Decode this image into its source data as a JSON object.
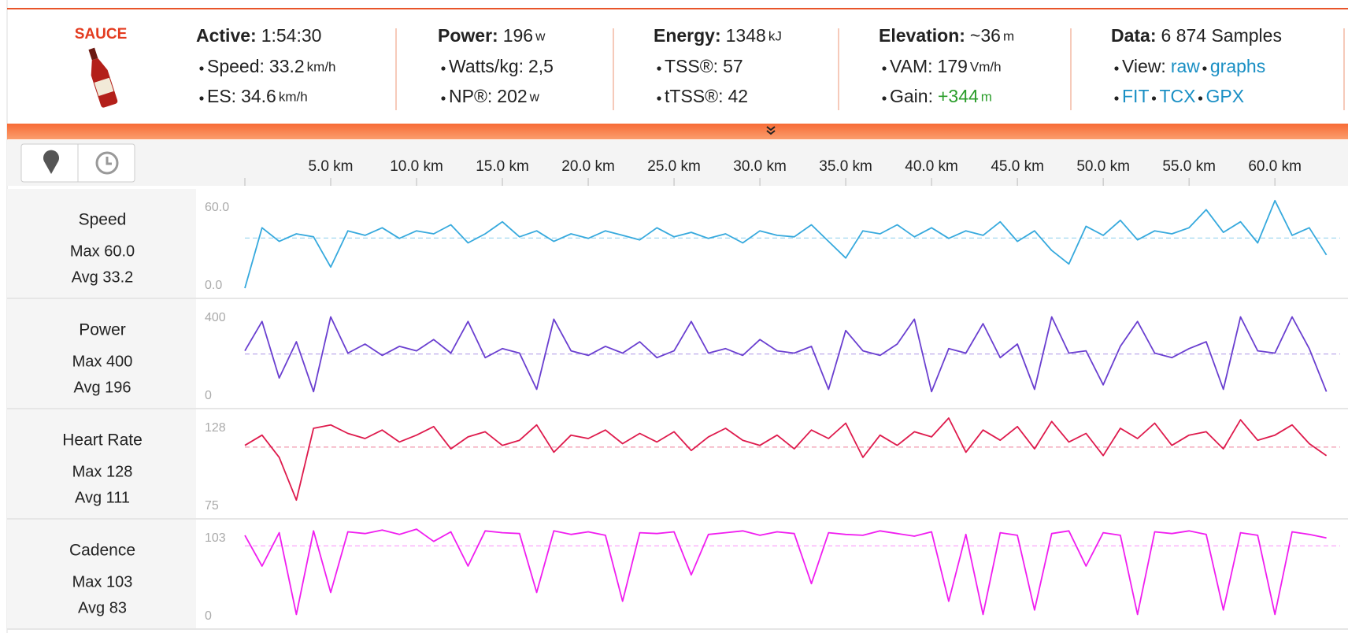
{
  "header": {
    "logo": "SAUCE",
    "stats": [
      {
        "label": "Active:",
        "value": "1:54:30",
        "items": [
          {
            "label": "Speed:",
            "value": "33.2",
            "unit": "km/h"
          },
          {
            "label": "ES:",
            "value": "34.6",
            "unit": "km/h"
          }
        ]
      },
      {
        "label": "Power:",
        "value": "196",
        "unit": "w",
        "items": [
          {
            "label": "Watts/kg:",
            "value": "2,5"
          },
          {
            "label": "NP®:",
            "value": "202",
            "unit": "w"
          }
        ]
      },
      {
        "label": "Energy:",
        "value": "1348",
        "unit": "kJ",
        "items": [
          {
            "label": "TSS®:",
            "value": "57"
          },
          {
            "label": "tTSS®:",
            "value": "42"
          }
        ]
      },
      {
        "label": "Elevation:",
        "value": "~36",
        "unit": "m",
        "items": [
          {
            "label": "VAM:",
            "value": "179",
            "unit": "Vm/h"
          },
          {
            "label": "Gain:",
            "value": "+344",
            "unit": "m",
            "color": "#2a9d2a"
          }
        ]
      },
      {
        "label": "Data:",
        "value": "6 874 Samples",
        "items": [
          {
            "label": "View:",
            "links": [
              "raw",
              "graphs"
            ]
          },
          {
            "links": [
              "FIT",
              "TCX",
              "GPX"
            ]
          }
        ]
      }
    ]
  },
  "charts": {
    "xlim": [
      0,
      63.8
    ],
    "xticks": [
      {
        "value": 5,
        "label": "5.0 km"
      },
      {
        "value": 10,
        "label": "10.0 km"
      },
      {
        "value": 15,
        "label": "15.0 km"
      },
      {
        "value": 20,
        "label": "20.0 km"
      },
      {
        "value": 25,
        "label": "25.0 km"
      },
      {
        "value": 30,
        "label": "30.0 km"
      },
      {
        "value": 35,
        "label": "35.0 km"
      },
      {
        "value": 40,
        "label": "40.0 km"
      },
      {
        "value": 45,
        "label": "45.0 km"
      },
      {
        "value": 50,
        "label": "50.0 km"
      },
      {
        "value": 55,
        "label": "55.0 km"
      },
      {
        "value": 60,
        "label": "60.0 km"
      }
    ],
    "x": [
      0,
      1,
      2,
      3,
      4,
      5,
      6,
      7,
      8,
      9,
      10,
      11,
      12,
      13,
      14,
      15,
      16,
      17,
      18,
      19,
      20,
      21,
      22,
      23,
      24,
      25,
      26,
      27,
      28,
      29,
      30,
      31,
      32,
      33,
      34,
      35,
      36,
      37,
      38,
      39,
      40,
      41,
      42,
      43,
      44,
      45,
      46,
      47,
      48,
      49,
      50,
      51,
      52,
      53,
      54,
      55,
      56,
      57,
      58,
      59,
      60,
      61,
      62,
      63
    ],
    "panels": [
      {
        "name": "Speed",
        "max_text": "Max 60.0",
        "avg_text": "Avg 33.2",
        "color": "#36a9dd",
        "avg": 33.2,
        "ylim": [
          0,
          60
        ],
        "yticks": [
          {
            "value": 0,
            "label": "0.0"
          },
          {
            "value": 60,
            "label": "60.0"
          }
        ],
        "values": [
          0,
          40,
          31,
          36,
          34,
          14,
          38,
          35,
          40,
          33,
          38,
          36,
          42,
          30,
          36,
          44,
          34,
          38,
          31,
          36,
          33,
          38,
          35,
          32,
          40,
          34,
          37,
          33,
          36,
          30,
          38,
          35,
          34,
          42,
          31,
          20,
          38,
          36,
          42,
          34,
          40,
          33,
          38,
          35,
          44,
          31,
          38,
          25,
          16,
          41,
          35,
          45,
          32,
          38,
          36,
          40,
          52,
          37,
          44,
          30,
          58,
          35,
          40,
          22
        ]
      },
      {
        "name": "Power",
        "max_text": "Max 400",
        "avg_text": "Avg 196",
        "color": "#6a3fd0",
        "avg": 196,
        "ylim": [
          0,
          400
        ],
        "yticks": [
          0,
          400
        ],
        "values": [
          210,
          340,
          90,
          250,
          30,
          360,
          200,
          240,
          190,
          230,
          210,
          260,
          200,
          340,
          180,
          220,
          200,
          40,
          350,
          210,
          190,
          230,
          200,
          250,
          180,
          210,
          340,
          200,
          220,
          190,
          260,
          210,
          200,
          230,
          40,
          300,
          210,
          190,
          240,
          350,
          30,
          220,
          200,
          330,
          180,
          240,
          40,
          360,
          200,
          210,
          60,
          230,
          340,
          200,
          180,
          220,
          250,
          40,
          360,
          210,
          200,
          360,
          220,
          30
        ]
      },
      {
        "name": "Heart Rate",
        "max_text": "Max 128",
        "avg_text": "Avg 111",
        "color": "#de1a4c",
        "avg": 111,
        "ylim": [
          75,
          128
        ],
        "yticks": [
          75,
          128
        ],
        "values": [
          112,
          118,
          105,
          80,
          122,
          124,
          119,
          116,
          121,
          114,
          118,
          123,
          110,
          117,
          120,
          112,
          115,
          124,
          108,
          118,
          116,
          121,
          113,
          119,
          114,
          120,
          109,
          117,
          122,
          115,
          112,
          118,
          110,
          121,
          116,
          125,
          105,
          118,
          112,
          120,
          117,
          128,
          108,
          121,
          115,
          123,
          110,
          126,
          114,
          119,
          106,
          122,
          116,
          125,
          112,
          118,
          120,
          110,
          127,
          115,
          118,
          124,
          113,
          106
        ]
      },
      {
        "name": "Cadence",
        "max_text": "Max 103",
        "avg_text": "Avg 83",
        "color": "#f01ef0",
        "avg": 83,
        "ylim": [
          0,
          103
        ],
        "yticks": [
          0,
          103
        ],
        "values": [
          95,
          60,
          98,
          5,
          100,
          30,
          99,
          97,
          101,
          96,
          102,
          88,
          99,
          60,
          100,
          98,
          97,
          30,
          100,
          96,
          99,
          95,
          20,
          98,
          97,
          99,
          50,
          96,
          98,
          100,
          95,
          99,
          97,
          40,
          98,
          96,
          95,
          100,
          97,
          94,
          99,
          20,
          96,
          5,
          98,
          95,
          10,
          97,
          100,
          60,
          98,
          95,
          5,
          99,
          97,
          100,
          96,
          10,
          98,
          95,
          5,
          99,
          96,
          92
        ]
      }
    ]
  }
}
